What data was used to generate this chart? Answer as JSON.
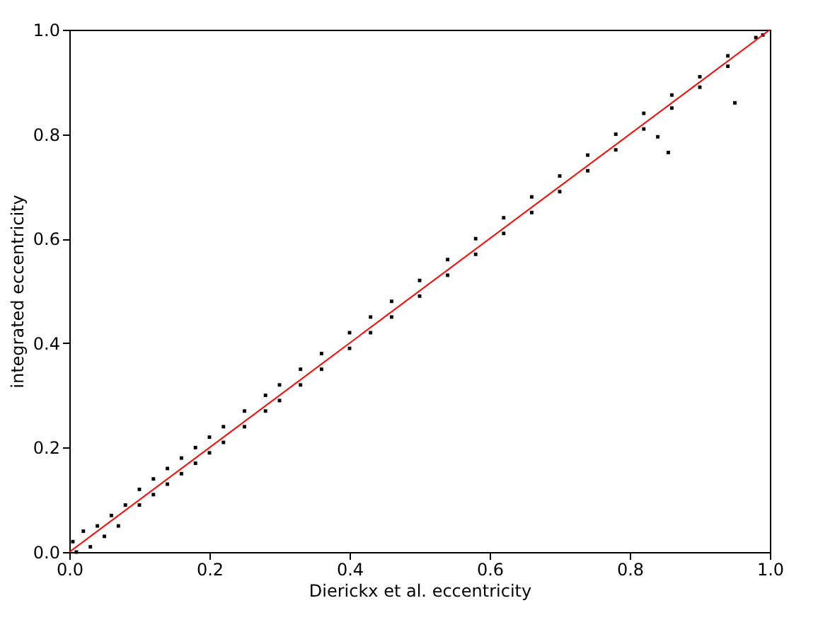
{
  "chart_data": {
    "type": "scatter",
    "xlabel": "Dierickx et al.  eccentricity",
    "ylabel": "integrated eccentricity",
    "xlim": [
      0,
      1
    ],
    "ylim": [
      0,
      1
    ],
    "xticks": [
      {
        "value": 0,
        "label": "0.0"
      },
      0.2,
      0.4,
      0.6,
      0.8,
      {
        "value": 1,
        "label": "1.0"
      }
    ],
    "yticks": [
      {
        "value": 0,
        "label": "0.0"
      },
      0.2,
      0.4,
      0.6,
      0.8,
      {
        "value": 1,
        "label": "1.0"
      }
    ],
    "grid": false,
    "series": [
      {
        "marker": "square",
        "color": "#000000",
        "x": [
          0.005,
          0.01,
          0.02,
          0.03,
          0.04,
          0.05,
          0.06,
          0.07,
          0.08,
          0.1,
          0.1,
          0.12,
          0.12,
          0.14,
          0.14,
          0.16,
          0.16,
          0.18,
          0.18,
          0.2,
          0.2,
          0.22,
          0.22,
          0.25,
          0.25,
          0.28,
          0.28,
          0.3,
          0.3,
          0.33,
          0.33,
          0.36,
          0.36,
          0.4,
          0.4,
          0.43,
          0.43,
          0.46,
          0.46,
          0.5,
          0.5,
          0.54,
          0.54,
          0.58,
          0.58,
          0.62,
          0.62,
          0.66,
          0.66,
          0.7,
          0.7,
          0.74,
          0.74,
          0.78,
          0.78,
          0.82,
          0.82,
          0.86,
          0.86,
          0.9,
          0.9,
          0.94,
          0.94,
          0.98,
          0.99,
          0.84,
          0.855,
          0.95
        ],
        "values": [
          0.02,
          0.0,
          0.04,
          0.01,
          0.05,
          0.03,
          0.07,
          0.05,
          0.09,
          0.12,
          0.09,
          0.14,
          0.11,
          0.16,
          0.13,
          0.18,
          0.15,
          0.2,
          0.17,
          0.22,
          0.19,
          0.24,
          0.21,
          0.27,
          0.24,
          0.3,
          0.27,
          0.32,
          0.29,
          0.35,
          0.32,
          0.38,
          0.35,
          0.42,
          0.39,
          0.45,
          0.42,
          0.48,
          0.45,
          0.52,
          0.49,
          0.56,
          0.53,
          0.6,
          0.57,
          0.64,
          0.61,
          0.68,
          0.65,
          0.72,
          0.69,
          0.76,
          0.73,
          0.8,
          0.77,
          0.84,
          0.81,
          0.875,
          0.85,
          0.91,
          0.89,
          0.95,
          0.93,
          0.985,
          0.99,
          0.795,
          0.765,
          0.86
        ]
      },
      {
        "type": "line",
        "color": "#ff0000",
        "x": [
          0,
          1
        ],
        "values": [
          0,
          1
        ]
      }
    ]
  }
}
